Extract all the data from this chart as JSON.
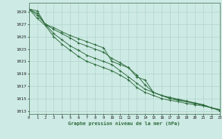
{
  "title": "Graphe pression niveau de la mer (hPa)",
  "background_color": "#ceeae4",
  "grid_color": "#aed4cc",
  "line_color": "#2d6b3c",
  "xlim": [
    0,
    23
  ],
  "ylim": [
    1012.5,
    1030.5
  ],
  "yticks": [
    1013,
    1015,
    1017,
    1019,
    1021,
    1023,
    1025,
    1027,
    1029
  ],
  "xticks": [
    0,
    1,
    2,
    3,
    4,
    5,
    6,
    7,
    8,
    9,
    10,
    11,
    12,
    13,
    14,
    15,
    16,
    17,
    18,
    19,
    20,
    21,
    22,
    23
  ],
  "series": [
    [
      1029.5,
      1029.2,
      1027.0,
      1026.5,
      1025.8,
      1025.2,
      1024.7,
      1024.2,
      1023.7,
      1023.2,
      1021.0,
      1020.5,
      1020.0,
      1018.5,
      1018.0,
      1016.0,
      1015.5,
      1015.0,
      1014.7,
      1014.5,
      1014.2,
      1014.0,
      1013.5,
      1013.2
    ],
    [
      1029.5,
      1028.8,
      1027.0,
      1026.2,
      1025.5,
      1024.8,
      1024.0,
      1023.5,
      1023.0,
      1022.5,
      1021.5,
      1020.8,
      1020.0,
      1018.8,
      1017.2,
      1016.0,
      1015.5,
      1015.0,
      1014.8,
      1014.5,
      1014.2,
      1013.9,
      1013.5,
      1013.2
    ],
    [
      1029.5,
      1028.5,
      1027.0,
      1025.5,
      1024.5,
      1023.5,
      1022.8,
      1022.0,
      1021.5,
      1021.0,
      1020.5,
      1019.5,
      1018.5,
      1017.5,
      1016.5,
      1016.0,
      1015.5,
      1015.2,
      1014.9,
      1014.6,
      1014.3,
      1014.0,
      1013.5,
      1013.2
    ],
    [
      1029.5,
      1028.0,
      1026.8,
      1025.0,
      1023.8,
      1022.8,
      1021.8,
      1021.0,
      1020.5,
      1020.0,
      1019.5,
      1018.8,
      1018.0,
      1016.8,
      1016.0,
      1015.5,
      1015.0,
      1014.7,
      1014.5,
      1014.2,
      1014.0,
      1013.8,
      1013.5,
      1013.0
    ]
  ]
}
